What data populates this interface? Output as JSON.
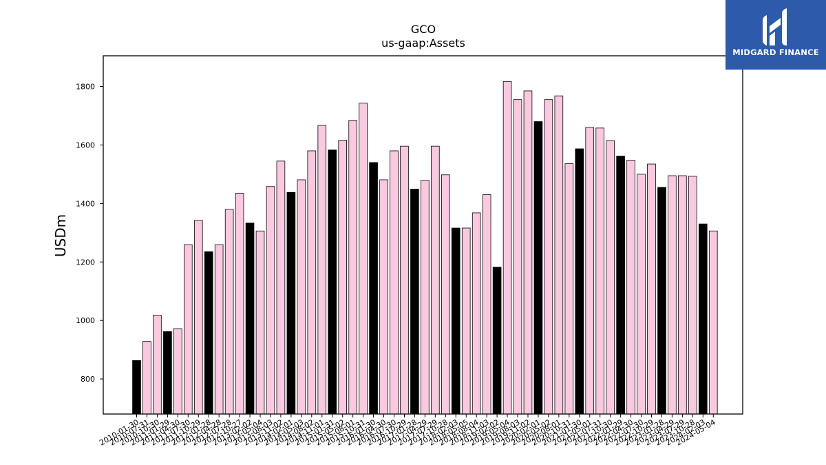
{
  "logo": {
    "text": "MIDGARD FINANCE",
    "icon": "midgard-logo-icon",
    "background": "#2d5aab"
  },
  "chart_data": {
    "type": "bar",
    "title": "GCO",
    "subtitle": "us-gaap:Assets",
    "ylabel": "USDm",
    "ylim": [
      680,
      1905
    ],
    "yticks": [
      800,
      1000,
      1200,
      1400,
      1600,
      1800
    ],
    "colors": {
      "annual": "#000000",
      "quarterly": "#f9c9df",
      "edge": "#000000"
    },
    "categories": [
      "2010-01-30",
      "2010-07-31",
      "2010-10-30",
      "2011-01-29",
      "2011-04-30",
      "2011-07-30",
      "2011-10-29",
      "2012-01-28",
      "2012-04-28",
      "2012-07-28",
      "2012-10-27",
      "2013-02-02",
      "2013-05-04",
      "2013-08-03",
      "2013-11-02",
      "2014-02-01",
      "2014-05-03",
      "2014-08-02",
      "2014-11-01",
      "2015-01-31",
      "2015-05-02",
      "2015-08-01",
      "2015-10-31",
      "2016-01-30",
      "2016-04-30",
      "2016-07-30",
      "2016-10-29",
      "2017-01-28",
      "2017-04-29",
      "2017-07-29",
      "2017-10-28",
      "2018-02-03",
      "2018-05-05",
      "2018-08-04",
      "2018-11-03",
      "2019-02-02",
      "2019-05-04",
      "2019-08-03",
      "2019-11-02",
      "2020-02-01",
      "2020-05-02",
      "2020-08-01",
      "2020-10-31",
      "2021-01-30",
      "2021-05-01",
      "2021-07-31",
      "2021-10-30",
      "2022-01-29",
      "2022-04-30",
      "2022-07-30",
      "2022-10-29",
      "2023-01-28",
      "2023-04-29",
      "2023-07-29",
      "2023-10-28",
      "2024-02-03",
      "2024-05-04"
    ],
    "values": [
      863,
      928,
      1018,
      962,
      972,
      1259,
      1342,
      1235,
      1259,
      1380,
      1435,
      1333,
      1306,
      1458,
      1545,
      1438,
      1481,
      1580,
      1667,
      1583,
      1616,
      1684,
      1743,
      1540,
      1481,
      1580,
      1596,
      1449,
      1479,
      1596,
      1498,
      1316,
      1316,
      1368,
      1430,
      1182,
      1817,
      1755,
      1785,
      1680,
      1755,
      1768,
      1536,
      1587,
      1660,
      1658,
      1615,
      1562,
      1548,
      1500,
      1535,
      1455,
      1495,
      1495,
      1493,
      1330,
      1306
    ],
    "annual": [
      true,
      false,
      false,
      true,
      false,
      false,
      false,
      true,
      false,
      false,
      false,
      true,
      false,
      false,
      false,
      true,
      false,
      false,
      false,
      true,
      false,
      false,
      false,
      true,
      false,
      false,
      false,
      true,
      false,
      false,
      false,
      true,
      false,
      false,
      false,
      true,
      false,
      false,
      false,
      true,
      false,
      false,
      false,
      true,
      false,
      false,
      false,
      true,
      false,
      false,
      false,
      true,
      false,
      false,
      false,
      true,
      false
    ]
  }
}
